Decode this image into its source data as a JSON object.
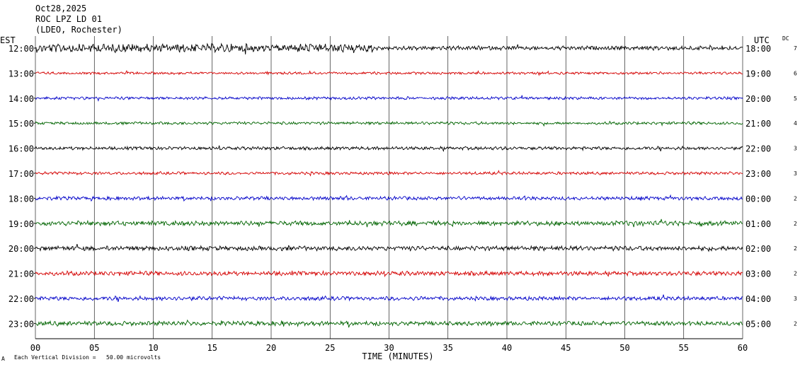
{
  "header": {
    "date": "Oct28,2025",
    "station": "ROC LPZ LD 01",
    "network": "(LDEO, Rochester)"
  },
  "left_axis_title": "EST",
  "right_axis_title": "UTC",
  "dc_title": "DC",
  "x_axis_title": "TIME (MINUTES)",
  "footer_note": "Each Vertical Division =   50.00 microvolts",
  "footer_mark": "A",
  "colors": {
    "black": "#000000",
    "red": "#d40000",
    "blue": "#0000c8",
    "green": "#006400",
    "grid": "#000000"
  },
  "chart_data": {
    "type": "line",
    "subtype": "helicorder seismogram",
    "xlabel": "TIME (MINUTES)",
    "xlim": [
      0,
      60
    ],
    "x_ticks": [
      "00",
      "05",
      "10",
      "15",
      "20",
      "25",
      "30",
      "35",
      "40",
      "45",
      "50",
      "55",
      "60"
    ],
    "grid": true,
    "rows": [
      {
        "est": "12:00",
        "utc": "18:00",
        "dc": "7",
        "color": "black"
      },
      {
        "est": "13:00",
        "utc": "19:00",
        "dc": "6",
        "color": "red"
      },
      {
        "est": "14:00",
        "utc": "20:00",
        "dc": "5",
        "color": "blue"
      },
      {
        "est": "15:00",
        "utc": "21:00",
        "dc": "4",
        "color": "green"
      },
      {
        "est": "16:00",
        "utc": "22:00",
        "dc": "3",
        "color": "black"
      },
      {
        "est": "17:00",
        "utc": "23:00",
        "dc": "3",
        "color": "red"
      },
      {
        "est": "18:00",
        "utc": "00:00",
        "dc": "2",
        "color": "blue"
      },
      {
        "est": "19:00",
        "utc": "01:00",
        "dc": "2",
        "color": "green"
      },
      {
        "est": "20:00",
        "utc": "02:00",
        "dc": "2",
        "color": "black"
      },
      {
        "est": "21:00",
        "utc": "03:00",
        "dc": "2",
        "color": "red"
      },
      {
        "est": "22:00",
        "utc": "04:00",
        "dc": "3",
        "color": "blue"
      },
      {
        "est": "23:00",
        "utc": "05:00",
        "dc": "2",
        "color": "green"
      }
    ]
  }
}
